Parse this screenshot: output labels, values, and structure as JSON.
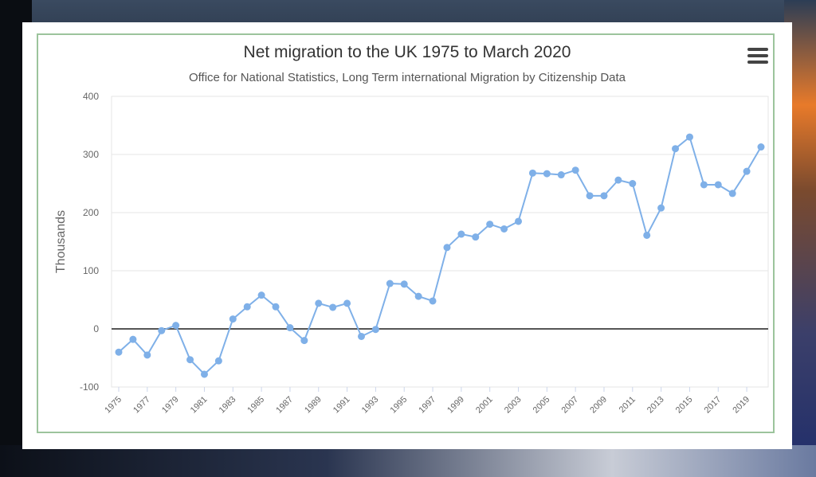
{
  "chart_data": {
    "type": "line",
    "title": "Net migration to the UK 1975 to March 2020",
    "subtitle": "Office for National Statistics, Long Term international Migration by Citizenship Data",
    "ylabel": "Thousands",
    "xlabel": "",
    "ylim": [
      -100,
      400
    ],
    "yticks": [
      -100,
      0,
      100,
      200,
      300,
      400
    ],
    "xlim": [
      1975,
      2020
    ],
    "xtick_labels": [
      "1975",
      "1977",
      "1979",
      "1981",
      "1983",
      "1985",
      "1987",
      "1989",
      "1991",
      "1993",
      "1995",
      "1997",
      "1999",
      "2001",
      "2003",
      "2005",
      "2007",
      "2009",
      "2011",
      "2013",
      "2015",
      "2017",
      "2019"
    ],
    "grid": true,
    "series_color": "#7fb0e8",
    "zero_line_color": "#555555",
    "x": [
      1975,
      1976,
      1977,
      1978,
      1979,
      1980,
      1981,
      1982,
      1983,
      1984,
      1985,
      1986,
      1987,
      1988,
      1989,
      1990,
      1991,
      1992,
      1993,
      1994,
      1995,
      1996,
      1997,
      1998,
      1999,
      2000,
      2001,
      2002,
      2003,
      2004,
      2005,
      2006,
      2007,
      2008,
      2009,
      2010,
      2011,
      2012,
      2013,
      2014,
      2015,
      2016,
      2017,
      2018,
      2019,
      2020
    ],
    "values": [
      -40,
      -18,
      -45,
      -3,
      6,
      -53,
      -78,
      -55,
      17,
      38,
      58,
      38,
      2,
      -20,
      44,
      37,
      44,
      -13,
      -1,
      78,
      77,
      56,
      48,
      140,
      163,
      158,
      180,
      172,
      185,
      268,
      267,
      265,
      273,
      229,
      229,
      256,
      250,
      161,
      208,
      310,
      330,
      248,
      248,
      233,
      271,
      313
    ]
  },
  "ui": {
    "menu_icon": "hamburger-menu-icon"
  }
}
